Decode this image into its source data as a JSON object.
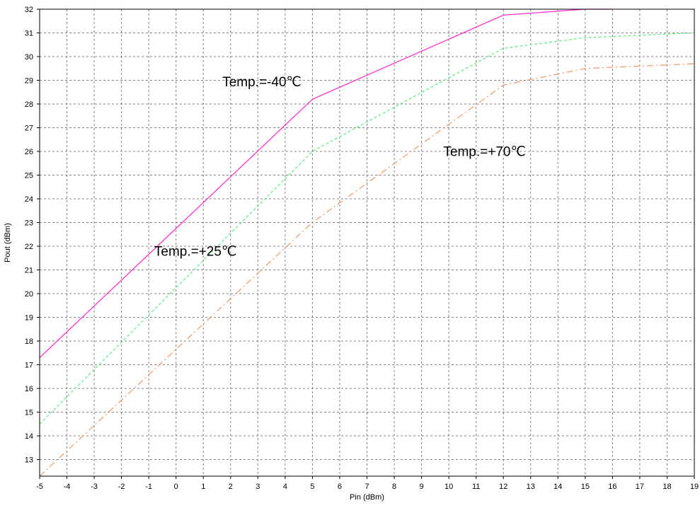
{
  "chart_data": {
    "type": "line",
    "xlabel": "Pin (dBm)",
    "ylabel": "Pout (dBm)",
    "xlim": [
      -5,
      19
    ],
    "ylim": [
      12.3,
      32
    ],
    "xticks": [
      -5,
      -4,
      -3,
      -2,
      -1,
      0,
      1,
      2,
      3,
      4,
      5,
      6,
      7,
      8,
      9,
      10,
      11,
      12,
      13,
      14,
      15,
      16,
      17,
      18,
      19
    ],
    "yticks": [
      13,
      14,
      15,
      16,
      17,
      18,
      19,
      20,
      21,
      22,
      23,
      24,
      25,
      26,
      27,
      28,
      29,
      30,
      31,
      32
    ],
    "grid": true,
    "series": [
      {
        "name": "Temp.=-40℃",
        "color": "#ff33cc",
        "dash": "solid",
        "x": [
          -5,
          5,
          12,
          15,
          16
        ],
        "y": [
          17.3,
          28.2,
          31.75,
          32.0,
          32.0
        ]
      },
      {
        "name": "Temp.=+25℃",
        "color": "#66ee88",
        "dash": "dashed",
        "x": [
          -5,
          5,
          12,
          15,
          19
        ],
        "y": [
          14.5,
          26.0,
          30.35,
          30.8,
          31.0
        ]
      },
      {
        "name": "Temp.=+70℃",
        "color": "#f0a070",
        "dash": "dashdot",
        "x": [
          -5,
          5,
          12,
          15,
          19
        ],
        "y": [
          12.3,
          23.0,
          28.8,
          29.5,
          29.7
        ]
      }
    ],
    "annotations": [
      {
        "text": "Temp.=-40℃",
        "x": 1.7,
        "y": 28.75
      },
      {
        "text": "Temp.=+25℃",
        "x": -0.8,
        "y": 21.6
      },
      {
        "text": "Temp.=+70℃",
        "x": 9.8,
        "y": 25.8
      }
    ]
  }
}
